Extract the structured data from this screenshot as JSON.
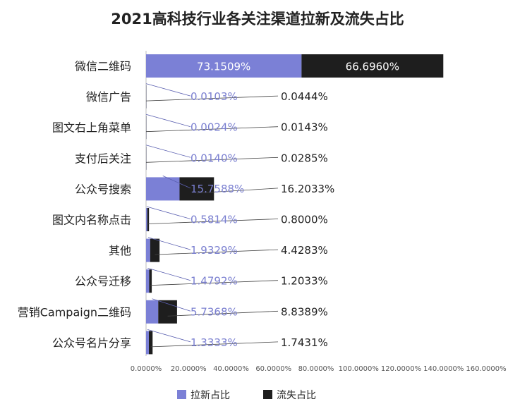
{
  "chart_data": {
    "type": "bar",
    "orientation": "horizontal",
    "stacked": true,
    "title": "2021高科技行业各关注渠道拉新及流失占比",
    "categories": [
      "微信二维码",
      "微信广告",
      "图文右上角菜单",
      "支付后关注",
      "公众号搜索",
      "图文内名称点击",
      "其他",
      "公众号迁移",
      "营销Campaign二维码",
      "公众号名片分享"
    ],
    "series": [
      {
        "name": "拉新占比",
        "color": "#7b80d6",
        "values": [
          73.1509,
          0.0103,
          0.0024,
          0.014,
          15.7588,
          0.5814,
          1.9329,
          1.4792,
          5.7368,
          1.3333
        ],
        "labels": [
          "73.1509%",
          "0.0103%",
          "0.0024%",
          "0.0140%",
          "15.7588%",
          "0.5814%",
          "1.9329%",
          "1.4792%",
          "5.7368%",
          "1.3333%"
        ]
      },
      {
        "name": "流失占比",
        "color": "#1e1e1e",
        "values": [
          66.696,
          0.0444,
          0.0143,
          0.0285,
          16.2033,
          0.8,
          4.4283,
          1.2033,
          8.8389,
          1.7431
        ],
        "labels": [
          "66.6960%",
          "0.0444%",
          "0.0143%",
          "0.0285%",
          "16.2033%",
          "0.8000%",
          "4.4283%",
          "1.2033%",
          "8.8389%",
          "1.7431%"
        ]
      }
    ],
    "xlim": [
      0,
      160
    ],
    "xticks": [
      0,
      20,
      40,
      60,
      80,
      100,
      120,
      140,
      160
    ],
    "xtick_labels": [
      "0.0000%",
      "20.0000%",
      "40.0000%",
      "60.0000%",
      "80.0000%",
      "100.0000%",
      "120.0000%",
      "140.0000%",
      "160.0000%"
    ],
    "legend_position": "bottom",
    "grid": false
  }
}
